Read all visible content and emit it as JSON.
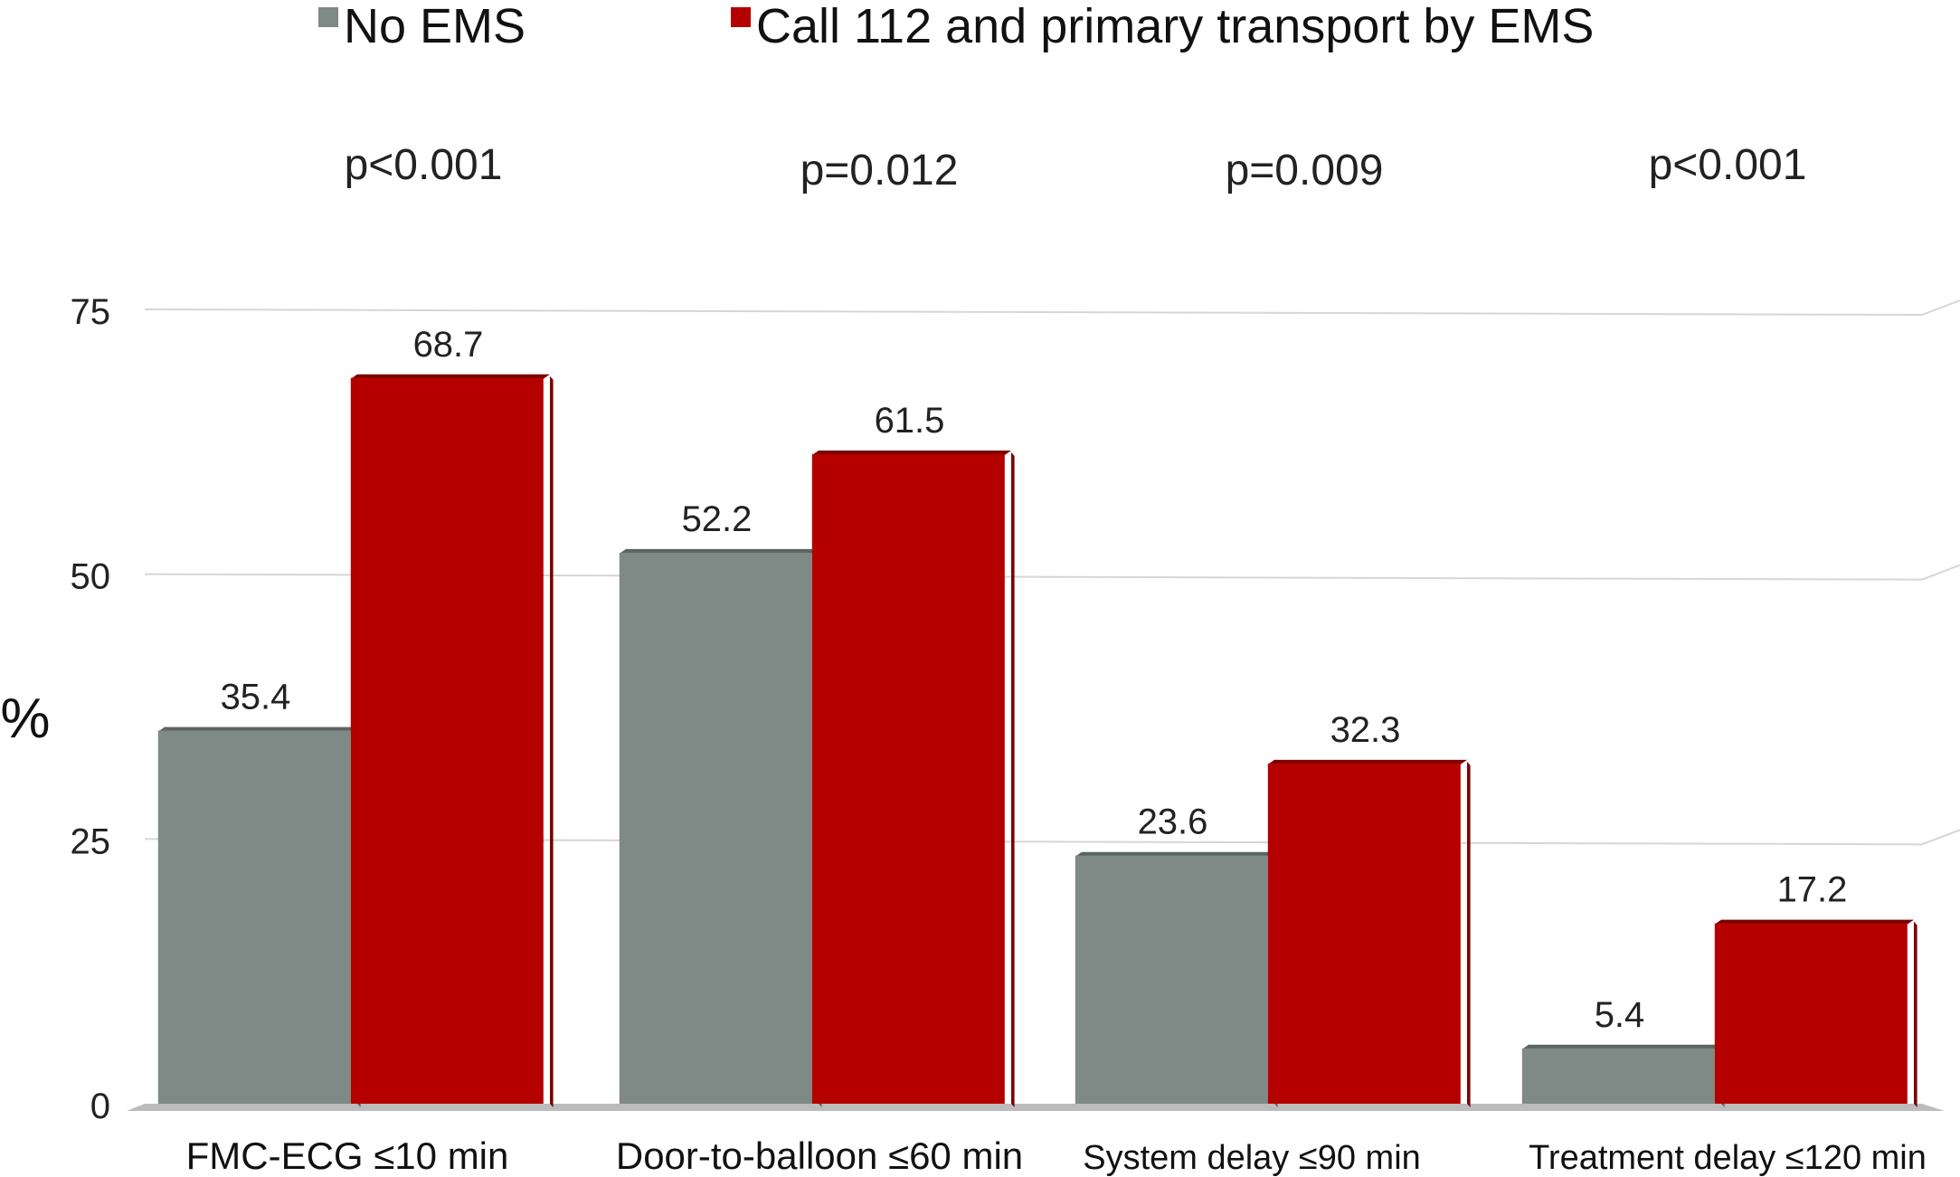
{
  "colors": {
    "no_ems": "#7f8986",
    "no_ems_dark": "#5c6562",
    "ems": "#b50000",
    "ems_dark": "#7d0000",
    "grid": "#d6d6d6",
    "floor": "#bcbcbc"
  },
  "chart_data": {
    "type": "bar",
    "title": "",
    "xlabel": "",
    "ylabel": "%",
    "ylim": [
      0,
      75
    ],
    "yticks": [
      "0",
      "25",
      "50",
      "75"
    ],
    "grid": true,
    "legend_position": "top",
    "categories": [
      "FMC-ECG ≤10 min",
      "Door-to-balloon ≤60 min",
      "System delay ≤90 min",
      "Treatment delay ≤120 min"
    ],
    "series": [
      {
        "name": "No EMS",
        "values": [
          35.4,
          52.2,
          23.6,
          5.4
        ],
        "labels": [
          "35.4",
          "52.2",
          "23.6",
          "5.4"
        ]
      },
      {
        "name": "Call 112 and primary transport by EMS",
        "values": [
          68.7,
          61.5,
          32.3,
          17.2
        ],
        "labels": [
          "68.7",
          "61.5",
          "32.3",
          "17.2"
        ]
      }
    ],
    "annotations": [
      "p<0.001",
      "p=0.012",
      "p=0.009",
      "p<0.001"
    ]
  }
}
